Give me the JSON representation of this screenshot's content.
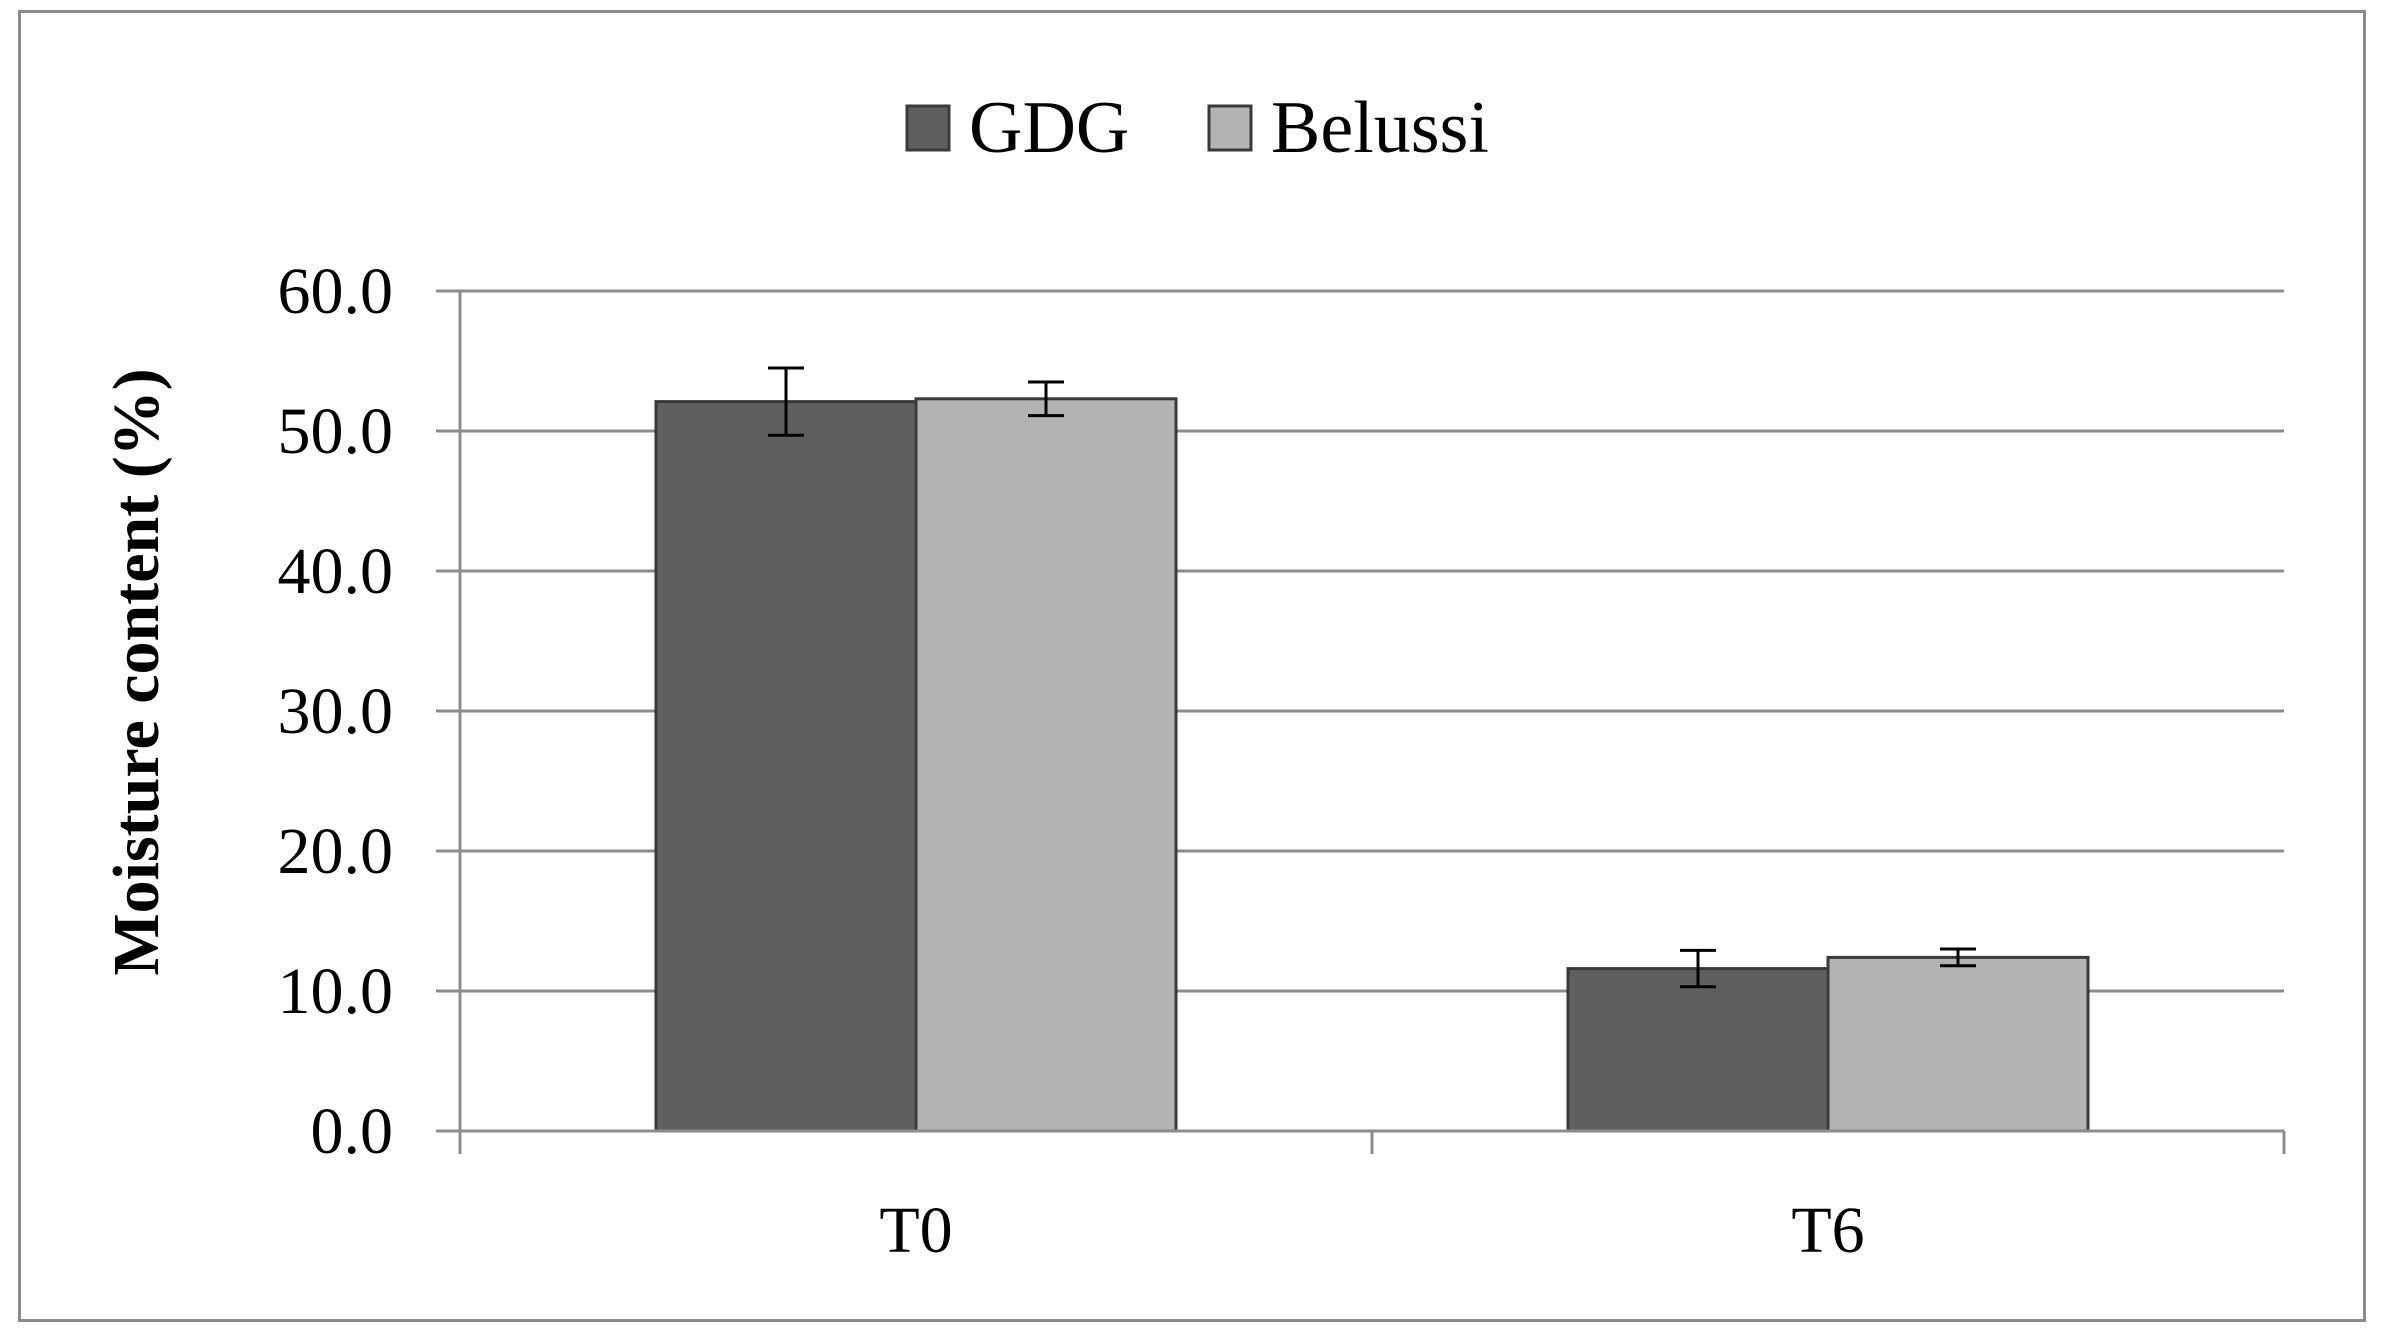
{
  "chart_data": {
    "type": "bar",
    "categories": [
      "T0",
      "T6"
    ],
    "series": [
      {
        "name": "GDG",
        "values": [
          52.1,
          11.6
        ],
        "errors": [
          2.4,
          1.3
        ],
        "color": "#5f5f5f"
      },
      {
        "name": "Belussi",
        "values": [
          52.3,
          12.4
        ],
        "errors": [
          1.2,
          0.6
        ],
        "color": "#b3b3b3"
      }
    ],
    "ylabel": "Moisture content (%)",
    "xlabel": "",
    "ylim": [
      0,
      60
    ],
    "yticks": [
      "0.0",
      "10.0",
      "20.0",
      "30.0",
      "40.0",
      "50.0",
      "60.0"
    ],
    "grid": true,
    "legend_position": "top-center",
    "gridline_color": "#8c8c8c"
  }
}
